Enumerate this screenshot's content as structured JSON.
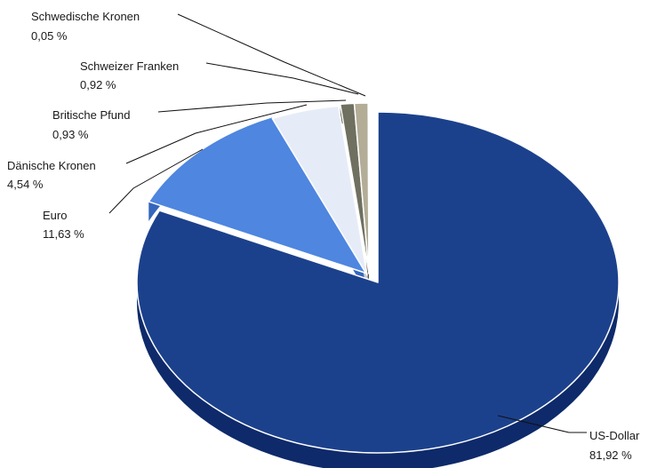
{
  "chart_data": {
    "type": "pie",
    "style": "3d-exploded",
    "title": "",
    "unit": "%",
    "legend": "none",
    "categories": [
      "US-Dollar",
      "Euro",
      "Dänische Kronen",
      "Britische Pfund",
      "Schweizer Franken",
      "Schwedische Kronen"
    ],
    "values": [
      81.92,
      11.63,
      4.54,
      0.93,
      0.92,
      0.05
    ],
    "value_labels": [
      "81,92 %",
      "11,63 %",
      "4,54 %",
      "0,93 %",
      "0,92 %",
      "0,05 %"
    ],
    "colors": [
      "#1c418c",
      "#4e86e0",
      "#e6ecf7",
      "#6f7060",
      "#b3ad97",
      "#8fb3d9"
    ],
    "side_colors": [
      "#0e2a6a",
      "#3566bd",
      "#c8cdd8",
      "#4f5043",
      "#8f8a76",
      "#6c8fb5"
    ]
  }
}
